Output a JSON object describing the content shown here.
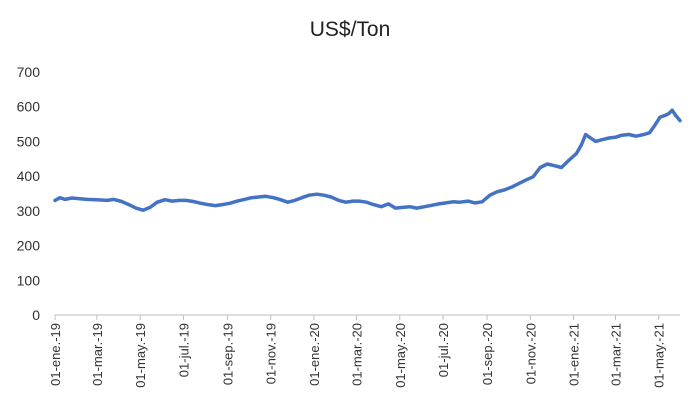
{
  "chart_data": {
    "type": "line",
    "title": "US$/Ton",
    "xlabel": "",
    "ylabel": "",
    "ylim": [
      0,
      700
    ],
    "yticks": [
      0,
      100,
      200,
      300,
      400,
      500,
      600,
      700
    ],
    "grid": false,
    "legend": "none",
    "line_color": "#4472C4",
    "xlim": [
      "2019-01-01",
      "2021-05-31"
    ],
    "xtick_labels": [
      "01-ene.-19",
      "01-mar.-19",
      "01-may.-19",
      "01-jul.-19",
      "01-sep.-19",
      "01-nov.-19",
      "01-ene.-20",
      "01-mar.-20",
      "01-may.-20",
      "01-jul.-20",
      "01-sep.-20",
      "01-nov.-20",
      "01-ene.-21",
      "01-mar.-21",
      "01-may.-21"
    ],
    "xtick_dates": [
      "2019-01-01",
      "2019-03-01",
      "2019-05-01",
      "2019-07-01",
      "2019-09-01",
      "2019-11-01",
      "2020-01-01",
      "2020-03-01",
      "2020-05-01",
      "2020-07-01",
      "2020-09-01",
      "2020-11-01",
      "2021-01-01",
      "2021-03-01",
      "2021-05-01"
    ],
    "series": [
      {
        "points": [
          [
            "2019-01-01",
            330
          ],
          [
            "2019-01-08",
            338
          ],
          [
            "2019-01-15",
            333
          ],
          [
            "2019-01-25",
            337
          ],
          [
            "2019-02-05",
            335
          ],
          [
            "2019-02-15",
            333
          ],
          [
            "2019-03-01",
            332
          ],
          [
            "2019-03-15",
            330
          ],
          [
            "2019-03-25",
            333
          ],
          [
            "2019-04-05",
            327
          ],
          [
            "2019-04-15",
            318
          ],
          [
            "2019-04-25",
            308
          ],
          [
            "2019-05-05",
            302
          ],
          [
            "2019-05-15",
            310
          ],
          [
            "2019-05-25",
            325
          ],
          [
            "2019-06-05",
            332
          ],
          [
            "2019-06-15",
            328
          ],
          [
            "2019-06-25",
            330
          ],
          [
            "2019-07-05",
            330
          ],
          [
            "2019-07-15",
            327
          ],
          [
            "2019-07-25",
            322
          ],
          [
            "2019-08-05",
            318
          ],
          [
            "2019-08-15",
            315
          ],
          [
            "2019-08-25",
            318
          ],
          [
            "2019-09-05",
            322
          ],
          [
            "2019-09-15",
            328
          ],
          [
            "2019-09-25",
            333
          ],
          [
            "2019-10-05",
            338
          ],
          [
            "2019-10-15",
            340
          ],
          [
            "2019-10-25",
            342
          ],
          [
            "2019-11-05",
            338
          ],
          [
            "2019-11-15",
            332
          ],
          [
            "2019-11-25",
            325
          ],
          [
            "2019-12-05",
            330
          ],
          [
            "2019-12-15",
            338
          ],
          [
            "2019-12-25",
            345
          ],
          [
            "2020-01-05",
            348
          ],
          [
            "2020-01-15",
            345
          ],
          [
            "2020-01-25",
            340
          ],
          [
            "2020-02-05",
            330
          ],
          [
            "2020-02-15",
            325
          ],
          [
            "2020-02-25",
            328
          ],
          [
            "2020-03-05",
            328
          ],
          [
            "2020-03-15",
            325
          ],
          [
            "2020-03-25",
            318
          ],
          [
            "2020-04-05",
            312
          ],
          [
            "2020-04-15",
            320
          ],
          [
            "2020-04-25",
            308
          ],
          [
            "2020-05-05",
            310
          ],
          [
            "2020-05-15",
            312
          ],
          [
            "2020-05-25",
            308
          ],
          [
            "2020-06-05",
            312
          ],
          [
            "2020-06-15",
            316
          ],
          [
            "2020-06-25",
            320
          ],
          [
            "2020-07-05",
            323
          ],
          [
            "2020-07-15",
            326
          ],
          [
            "2020-07-25",
            325
          ],
          [
            "2020-08-05",
            328
          ],
          [
            "2020-08-15",
            323
          ],
          [
            "2020-08-25",
            326
          ],
          [
            "2020-09-05",
            345
          ],
          [
            "2020-09-15",
            355
          ],
          [
            "2020-09-25",
            360
          ],
          [
            "2020-10-05",
            368
          ],
          [
            "2020-10-15",
            378
          ],
          [
            "2020-10-25",
            388
          ],
          [
            "2020-11-05",
            398
          ],
          [
            "2020-11-15",
            425
          ],
          [
            "2020-11-25",
            435
          ],
          [
            "2020-12-05",
            430
          ],
          [
            "2020-12-15",
            425
          ],
          [
            "2020-12-25",
            445
          ],
          [
            "2021-01-05",
            465
          ],
          [
            "2021-01-12",
            490
          ],
          [
            "2021-01-18",
            520
          ],
          [
            "2021-01-25",
            510
          ],
          [
            "2021-02-01",
            500
          ],
          [
            "2021-02-10",
            505
          ],
          [
            "2021-02-20",
            510
          ],
          [
            "2021-03-01",
            512
          ],
          [
            "2021-03-10",
            518
          ],
          [
            "2021-03-20",
            520
          ],
          [
            "2021-03-30",
            515
          ],
          [
            "2021-04-10",
            520
          ],
          [
            "2021-04-18",
            525
          ],
          [
            "2021-04-25",
            545
          ],
          [
            "2021-05-03",
            570
          ],
          [
            "2021-05-10",
            575
          ],
          [
            "2021-05-15",
            580
          ],
          [
            "2021-05-20",
            590
          ],
          [
            "2021-05-25",
            575
          ],
          [
            "2021-05-31",
            560
          ]
        ]
      }
    ]
  }
}
